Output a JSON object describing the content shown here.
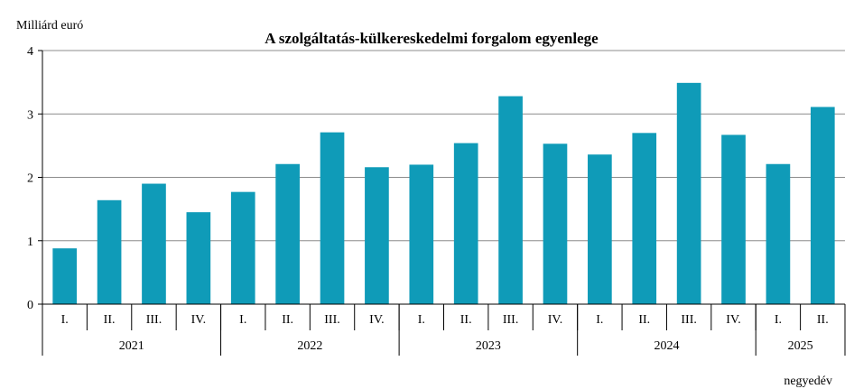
{
  "chart_data": {
    "type": "bar",
    "title": "A szolgáltatás-külkereskedelmi forgalom egyenlege",
    "ylabel": "Milliárd euró",
    "xlabel": "negyedév",
    "ylim": [
      0,
      4
    ],
    "yticks": [
      "0",
      "1",
      "2",
      "3",
      "4"
    ],
    "grid": true,
    "legend": "none",
    "bar_color": "#0f9bb8",
    "categories": [
      "I.",
      "II.",
      "III.",
      "IV.",
      "I.",
      "II.",
      "III.",
      "IV.",
      "I.",
      "II.",
      "III.",
      "IV.",
      "I.",
      "II.",
      "III.",
      "IV.",
      "I.",
      "II."
    ],
    "values": [
      0.88,
      1.64,
      1.9,
      1.45,
      1.77,
      2.21,
      2.71,
      2.16,
      2.2,
      2.54,
      3.28,
      2.53,
      2.36,
      2.7,
      3.49,
      2.67,
      2.21,
      3.11
    ],
    "groups": [
      {
        "label": "2021",
        "count": 4
      },
      {
        "label": "2022",
        "count": 4
      },
      {
        "label": "2023",
        "count": 4
      },
      {
        "label": "2024",
        "count": 4
      },
      {
        "label": "2025",
        "count": 2
      }
    ]
  }
}
